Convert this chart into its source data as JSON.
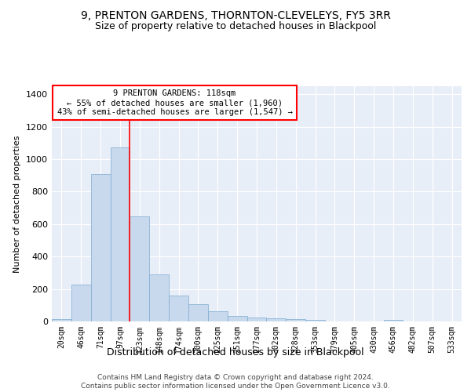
{
  "title": "9, PRENTON GARDENS, THORNTON-CLEVELEYS, FY5 3RR",
  "subtitle": "Size of property relative to detached houses in Blackpool",
  "xlabel": "Distribution of detached houses by size in Blackpool",
  "ylabel": "Number of detached properties",
  "bar_color": "#c9d9ed",
  "bar_edgecolor": "#7aaad0",
  "background_color": "#e8eef8",
  "grid_color": "#ffffff",
  "categories": [
    "20sqm",
    "46sqm",
    "71sqm",
    "97sqm",
    "123sqm",
    "148sqm",
    "174sqm",
    "200sqm",
    "225sqm",
    "251sqm",
    "277sqm",
    "302sqm",
    "328sqm",
    "353sqm",
    "379sqm",
    "405sqm",
    "430sqm",
    "456sqm",
    "482sqm",
    "507sqm",
    "533sqm"
  ],
  "values": [
    15,
    225,
    910,
    1075,
    650,
    290,
    160,
    105,
    65,
    35,
    25,
    20,
    15,
    10,
    0,
    0,
    0,
    10,
    0,
    0,
    0
  ],
  "ylim": [
    0,
    1450
  ],
  "yticks": [
    0,
    200,
    400,
    600,
    800,
    1000,
    1200,
    1400
  ],
  "redline_index": 4,
  "annotation_text": "9 PRENTON GARDENS: 118sqm\n← 55% of detached houses are smaller (1,960)\n43% of semi-detached houses are larger (1,547) →",
  "footer": "Contains HM Land Registry data © Crown copyright and database right 2024.\nContains public sector information licensed under the Open Government Licence v3.0."
}
